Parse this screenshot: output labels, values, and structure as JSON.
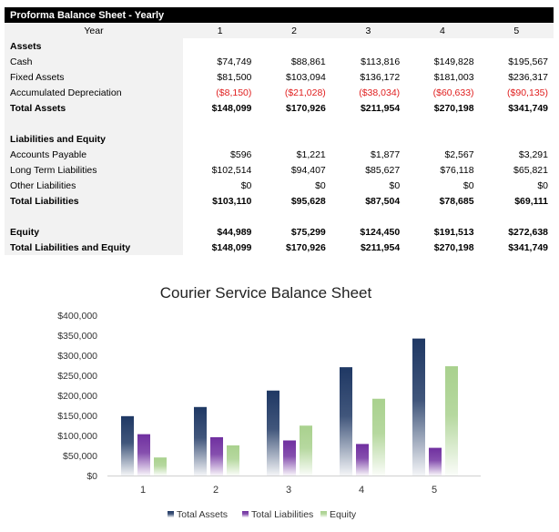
{
  "sheet": {
    "title": "Proforma Balance Sheet - Yearly",
    "year_label": "Year",
    "years": [
      "1",
      "2",
      "3",
      "4",
      "5"
    ],
    "rows": [
      {
        "label": "Assets",
        "bold": true,
        "values": []
      },
      {
        "label": "Cash",
        "values": [
          "$74,749",
          "$88,861",
          "$113,816",
          "$149,828",
          "$195,567"
        ]
      },
      {
        "label": "Fixed Assets",
        "values": [
          "$81,500",
          "$103,094",
          "$136,172",
          "$181,003",
          "$236,317"
        ]
      },
      {
        "label": "Accumulated Depreciation",
        "negative": true,
        "values": [
          "($8,150)",
          "($21,028)",
          "($38,034)",
          "($60,633)",
          "($90,135)"
        ]
      },
      {
        "label": "Total Assets",
        "bold": true,
        "values": [
          "$148,099",
          "$170,926",
          "$211,954",
          "$270,198",
          "$341,749"
        ]
      },
      {
        "label": "",
        "values": []
      },
      {
        "label": "Liabilities and Equity",
        "bold": true,
        "values": []
      },
      {
        "label": "Accounts Payable",
        "values": [
          "$596",
          "$1,221",
          "$1,877",
          "$2,567",
          "$3,291"
        ]
      },
      {
        "label": "Long Term Liabilities",
        "values": [
          "$102,514",
          "$94,407",
          "$85,627",
          "$76,118",
          "$65,821"
        ]
      },
      {
        "label": "Other Liabilities",
        "values": [
          "$0",
          "$0",
          "$0",
          "$0",
          "$0"
        ]
      },
      {
        "label": "Total Liabilities",
        "bold": true,
        "values": [
          "$103,110",
          "$95,628",
          "$87,504",
          "$78,685",
          "$69,111"
        ]
      },
      {
        "label": "",
        "values": []
      },
      {
        "label": "Equity",
        "bold": true,
        "values": [
          "$44,989",
          "$75,299",
          "$124,450",
          "$191,513",
          "$272,638"
        ]
      },
      {
        "label": "Total Liabilities and Equity",
        "bold": true,
        "values": [
          "$148,099",
          "$170,926",
          "$211,954",
          "$270,198",
          "$341,749"
        ]
      }
    ]
  },
  "chart_data": {
    "type": "bar",
    "title": "Courier Service Balance Sheet",
    "categories": [
      "1",
      "2",
      "3",
      "4",
      "5"
    ],
    "ylim": [
      0,
      400000
    ],
    "yticks": [
      "$0",
      "$50,000",
      "$100,000",
      "$150,000",
      "$200,000",
      "$250,000",
      "$300,000",
      "$350,000",
      "$400,000"
    ],
    "grid": false,
    "legend": "bottom",
    "series": [
      {
        "name": "Total Assets",
        "color": "#1f3864",
        "values": [
          148099,
          170926,
          211954,
          270198,
          341749
        ]
      },
      {
        "name": "Total Liabilities",
        "color": "#7030a0",
        "values": [
          103110,
          95628,
          87504,
          78685,
          69111
        ]
      },
      {
        "name": "Equity",
        "color": "#a9d18e",
        "values": [
          44989,
          75299,
          124450,
          191513,
          272638
        ]
      }
    ]
  }
}
